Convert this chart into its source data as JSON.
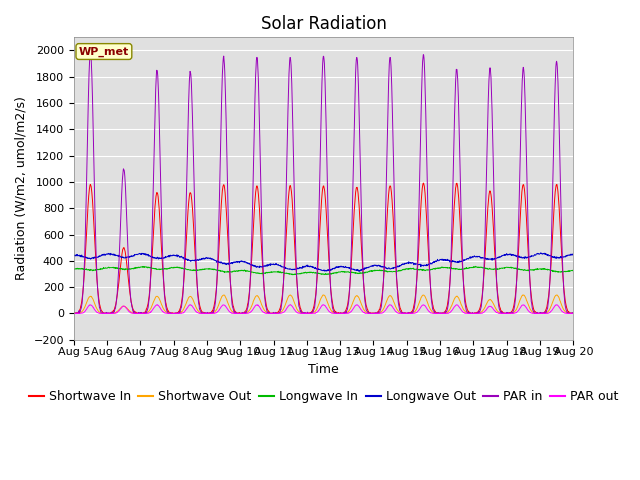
{
  "title": "Solar Radiation",
  "ylabel": "Radiation (W/m2, umol/m2/s)",
  "xlabel": "Time",
  "ylim": [
    -200,
    2100
  ],
  "yticks": [
    -200,
    0,
    200,
    400,
    600,
    800,
    1000,
    1200,
    1400,
    1600,
    1800,
    2000
  ],
  "xtick_labels": [
    "Aug 5",
    "Aug 6",
    "Aug 7",
    "Aug 8",
    "Aug 9",
    "Aug 10",
    "Aug 11",
    "Aug 12",
    "Aug 13",
    "Aug 14",
    "Aug 15",
    "Aug 16",
    "Aug 17",
    "Aug 18",
    "Aug 19",
    "Aug 20"
  ],
  "n_days": 15,
  "legend_entries": [
    "Shortwave In",
    "Shortwave Out",
    "Longwave In",
    "Longwave Out",
    "PAR in",
    "PAR out"
  ],
  "legend_colors": [
    "#ff0000",
    "#ffa500",
    "#00bb00",
    "#0000cc",
    "#9900bb",
    "#ff00ff"
  ],
  "watermark_text": "WP_met",
  "watermark_color": "#8b0000",
  "watermark_bg": "#ffffcc",
  "background_color": "#e0e0e0",
  "title_fontsize": 12,
  "label_fontsize": 9,
  "tick_fontsize": 8,
  "legend_fontsize": 9,
  "grid_color": "#ffffff",
  "shortwave_in_peak": [
    980,
    500,
    920,
    920,
    980,
    970,
    970,
    970,
    960,
    970,
    990,
    990,
    930,
    980,
    980
  ],
  "shortwave_out_peak": [
    130,
    55,
    130,
    130,
    140,
    135,
    140,
    140,
    135,
    135,
    140,
    130,
    105,
    140,
    140
  ],
  "longwave_in_base": 325,
  "longwave_out_base": 390,
  "par_in_peak": [
    1990,
    1100,
    1850,
    1840,
    1950,
    1950,
    1950,
    1960,
    1950,
    1950,
    1970,
    1860,
    1870,
    1870,
    1920
  ],
  "par_out_peak": [
    65,
    55,
    65,
    65,
    65,
    65,
    65,
    65,
    65,
    65,
    65,
    65,
    55,
    65,
    65
  ]
}
